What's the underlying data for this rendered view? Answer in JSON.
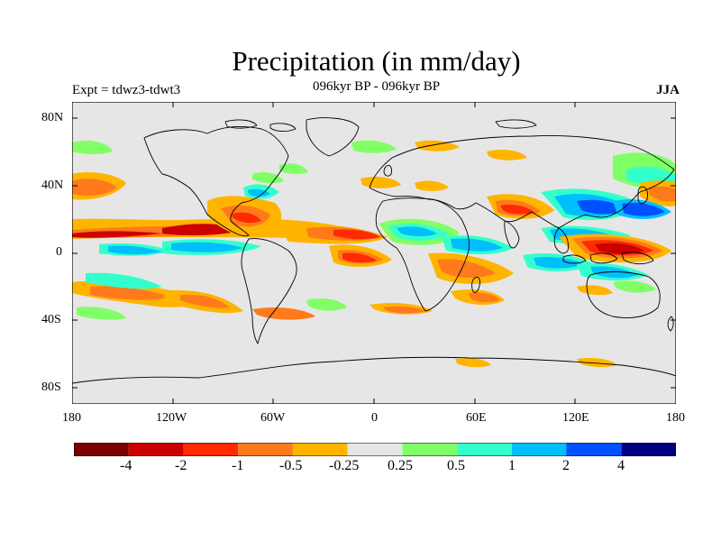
{
  "title": "Precipitation (in mm/day)",
  "subtitle": "096kyr BP - 096kyr BP",
  "left_label": "Expt = tdwz3-tdwt3",
  "right_label": "JJA",
  "lat_ticks": [
    "80N",
    "40N",
    "0",
    "40S",
    "80S"
  ],
  "lon_ticks": [
    "180",
    "120W",
    "60W",
    "0",
    "60E",
    "120E",
    "180"
  ],
  "colorbar": {
    "colors": [
      "#7a0000",
      "#cc0000",
      "#ff2a00",
      "#ff7a1a",
      "#ffb400",
      "#e6e6e6",
      "#80ff66",
      "#33ffcc",
      "#00bfff",
      "#0050ff",
      "#000080"
    ],
    "labels": [
      "-4",
      "-2",
      "-1",
      "-0.5",
      "-0.25",
      "0.25",
      "0.5",
      "1",
      "2",
      "4"
    ]
  },
  "colors": {
    "background": "#e6e6e6",
    "coast": "#000000"
  }
}
